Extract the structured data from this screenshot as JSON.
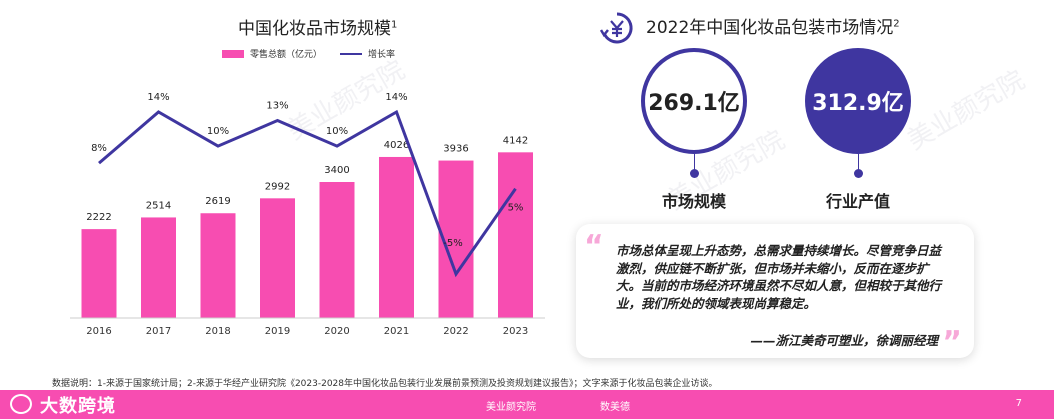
{
  "left": {
    "title": "中国化妆品市场规模",
    "title_sup": "1",
    "legend_bar": "零售总额（亿元）",
    "legend_line": "增长率"
  },
  "chart_data": {
    "type": "bar",
    "categories": [
      "2016",
      "2017",
      "2018",
      "2019",
      "2020",
      "2021",
      "2022",
      "2023"
    ],
    "series": [
      {
        "name": "零售总额（亿元）",
        "type": "bar",
        "values": [
          2222,
          2514,
          2619,
          2992,
          3400,
          4026,
          3936,
          4142
        ]
      },
      {
        "name": "增长率",
        "type": "line",
        "values": [
          8,
          14,
          10,
          13,
          10,
          14,
          -5,
          5
        ]
      }
    ],
    "line_labels": [
      "8%",
      "14%",
      "10%",
      "13%",
      "10%",
      "14%",
      "-5%",
      "5%"
    ],
    "ylim": [
      0,
      5000
    ],
    "line_ylim": [
      -7,
      16
    ],
    "colors": {
      "bar": "#f74db1",
      "line": "#3f36a0"
    },
    "grid": false
  },
  "right": {
    "title": "2022年中国化妆品包装市场情况",
    "title_sup": "2",
    "metric1": {
      "value": "269.1亿",
      "label": "市场规模"
    },
    "metric2": {
      "value": "312.9亿",
      "label": "行业产值"
    },
    "quote": "市场总体呈现上升态势，总需求量持续增长。尽管竞争日益激烈，供应链不断扩张，但市场并未缩小，反而在逐步扩大。当前的市场经济环境虽然不尽如人意，但相较于其他行业，我们所处的领域表现尚算稳定。",
    "author": "——浙江美奇可塑业，徐调丽经理",
    "quote_open": "“",
    "quote_close": "”"
  },
  "source": "数据说明：1-来源于国家统计局；2-来源于华经产业研究院《2023-2028年中国化妆品包装行业发展前景预测及投资规划建议报告》；文字来源于化妆品包装企业访谈。",
  "footer": {
    "brand": "大数跨境",
    "logo1": "美业颜究院",
    "logo2": "数美德",
    "page": "7"
  },
  "watermark": "美业颜究院"
}
